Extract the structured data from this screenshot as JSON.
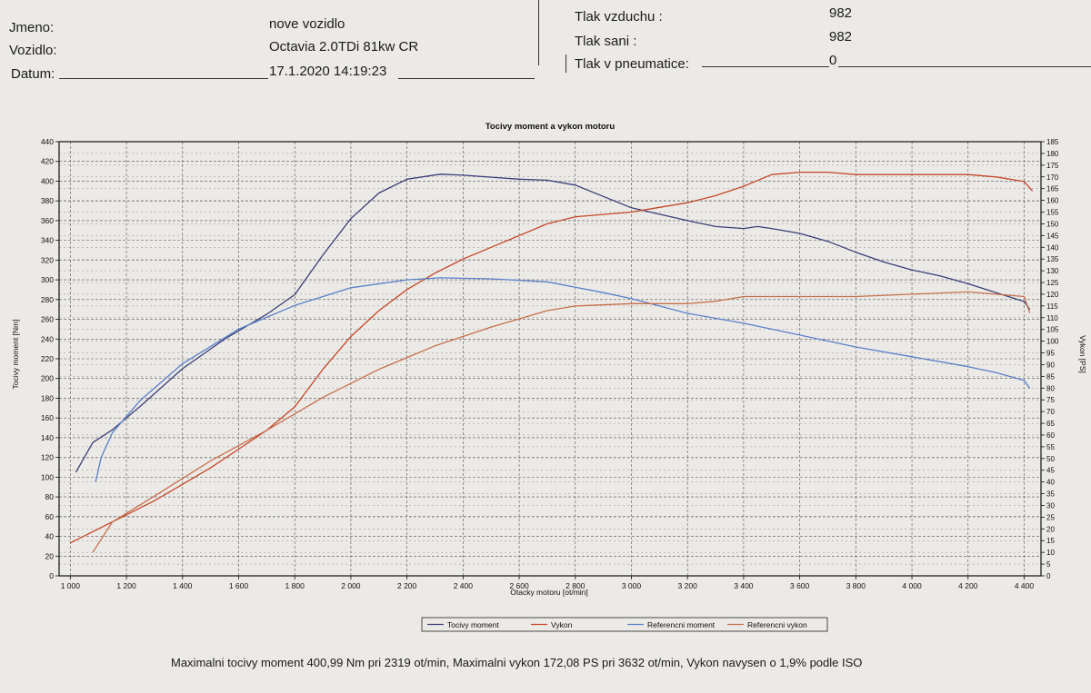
{
  "header": {
    "left": {
      "name_label": "Jmeno:",
      "name_value": "nove vozidlo",
      "vehicle_label": "Vozidlo:",
      "vehicle_value": "Octavia 2.0TDi 81kw CR",
      "date_label": "Datum:",
      "date_value": "17.1.2020 14:19:23"
    },
    "right": {
      "air_pressure_label": "Tlak vzduchu :",
      "air_pressure_value": "982",
      "intake_pressure_label": "Tlak sani :",
      "intake_pressure_value": "982",
      "tire_pressure_label": "Tlak v pneumatice:",
      "tire_pressure_value": "0"
    }
  },
  "summary": "Maximalni tocivy moment 400,99 Nm pri 2319 ot/min,  Maximalni vykon 172,08 PS pri 3632 ot/min,  Vykon navysen o 1,9% podle ISO",
  "chart_data": {
    "type": "line",
    "title": "Tocivy moment a vykon motoru",
    "xlabel": "Otacky motoru [ot/min]",
    "ylabel_left": "Tocivy moment [Nm]",
    "ylabel_right": "Vykon [PS]",
    "xlim": [
      960,
      4460
    ],
    "ylim_left": [
      0,
      440
    ],
    "ylim_right": [
      0,
      185
    ],
    "x_ticks": [
      1000,
      1200,
      1400,
      1600,
      1800,
      2000,
      2200,
      2400,
      2600,
      2800,
      3000,
      3200,
      3400,
      3600,
      3800,
      4000,
      4200,
      4400
    ],
    "x_tick_labels": [
      "1 000",
      "1 200",
      "1 400",
      "1 600",
      "1 800",
      "2 000",
      "2 200",
      "2 400",
      "2 600",
      "2 800",
      "3 000",
      "3 200",
      "3 400",
      "3 600",
      "3 800",
      "4 000",
      "4 200",
      "4 400"
    ],
    "y_left_ticks": [
      0,
      20,
      40,
      60,
      80,
      100,
      120,
      140,
      160,
      180,
      200,
      220,
      240,
      260,
      280,
      300,
      320,
      340,
      360,
      380,
      400,
      420,
      440
    ],
    "y_right_ticks": [
      0,
      5,
      10,
      15,
      20,
      25,
      30,
      35,
      40,
      45,
      50,
      55,
      60,
      65,
      70,
      75,
      80,
      85,
      90,
      95,
      100,
      105,
      110,
      115,
      120,
      125,
      130,
      135,
      140,
      145,
      150,
      155,
      160,
      165,
      170,
      175,
      180,
      185
    ],
    "legend_position": "bottom",
    "series": [
      {
        "name": "Tocivy moment",
        "axis": "left",
        "color": "#3a3f78",
        "points": [
          [
            1020,
            105
          ],
          [
            1080,
            135
          ],
          [
            1150,
            148
          ],
          [
            1250,
            172
          ],
          [
            1400,
            210
          ],
          [
            1550,
            240
          ],
          [
            1700,
            265
          ],
          [
            1800,
            285
          ],
          [
            1900,
            325
          ],
          [
            2000,
            362
          ],
          [
            2100,
            388
          ],
          [
            2200,
            402
          ],
          [
            2319,
            407
          ],
          [
            2400,
            406
          ],
          [
            2600,
            402
          ],
          [
            2700,
            401
          ],
          [
            2800,
            396
          ],
          [
            3000,
            373
          ],
          [
            3200,
            360
          ],
          [
            3300,
            354
          ],
          [
            3400,
            352
          ],
          [
            3450,
            354
          ],
          [
            3500,
            352
          ],
          [
            3600,
            347
          ],
          [
            3700,
            339
          ],
          [
            3800,
            328
          ],
          [
            3900,
            318
          ],
          [
            4000,
            310
          ],
          [
            4100,
            304
          ],
          [
            4200,
            296
          ],
          [
            4300,
            287
          ],
          [
            4400,
            278
          ],
          [
            4420,
            270
          ]
        ]
      },
      {
        "name": "Vykon",
        "axis": "right",
        "color": "#c5472a",
        "points": [
          [
            1000,
            14
          ],
          [
            1100,
            20
          ],
          [
            1200,
            26
          ],
          [
            1300,
            32
          ],
          [
            1400,
            39
          ],
          [
            1500,
            46
          ],
          [
            1600,
            54
          ],
          [
            1700,
            62
          ],
          [
            1800,
            72
          ],
          [
            1900,
            88
          ],
          [
            2000,
            102
          ],
          [
            2100,
            113
          ],
          [
            2200,
            122
          ],
          [
            2300,
            129
          ],
          [
            2400,
            135
          ],
          [
            2500,
            140
          ],
          [
            2600,
            145
          ],
          [
            2700,
            150
          ],
          [
            2800,
            153
          ],
          [
            2900,
            154
          ],
          [
            3000,
            155
          ],
          [
            3100,
            157
          ],
          [
            3200,
            159
          ],
          [
            3300,
            162
          ],
          [
            3400,
            166
          ],
          [
            3500,
            171
          ],
          [
            3600,
            172
          ],
          [
            3700,
            172
          ],
          [
            3800,
            171
          ],
          [
            3900,
            171
          ],
          [
            4000,
            171
          ],
          [
            4100,
            171
          ],
          [
            4200,
            171
          ],
          [
            4300,
            170
          ],
          [
            4400,
            168
          ],
          [
            4430,
            164
          ]
        ]
      },
      {
        "name": "Referencni moment",
        "axis": "left",
        "color": "#5b7fc9",
        "points": [
          [
            1090,
            95
          ],
          [
            1110,
            120
          ],
          [
            1150,
            145
          ],
          [
            1250,
            178
          ],
          [
            1400,
            215
          ],
          [
            1600,
            250
          ],
          [
            1800,
            274
          ],
          [
            2000,
            292
          ],
          [
            2200,
            300
          ],
          [
            2319,
            302
          ],
          [
            2500,
            301
          ],
          [
            2700,
            298
          ],
          [
            2900,
            287
          ],
          [
            3000,
            281
          ],
          [
            3200,
            266
          ],
          [
            3400,
            256
          ],
          [
            3600,
            244
          ],
          [
            3800,
            232
          ],
          [
            4000,
            222
          ],
          [
            4200,
            212
          ],
          [
            4300,
            206
          ],
          [
            4400,
            198
          ],
          [
            4420,
            190
          ]
        ]
      },
      {
        "name": "Referencni vykon",
        "axis": "right",
        "color": "#c6704f",
        "points": [
          [
            1080,
            10
          ],
          [
            1150,
            23
          ],
          [
            1300,
            34
          ],
          [
            1500,
            49
          ],
          [
            1700,
            62
          ],
          [
            1900,
            76
          ],
          [
            2100,
            88
          ],
          [
            2300,
            98
          ],
          [
            2500,
            106
          ],
          [
            2700,
            113
          ],
          [
            2800,
            115
          ],
          [
            3000,
            116
          ],
          [
            3200,
            116
          ],
          [
            3300,
            117
          ],
          [
            3400,
            119
          ],
          [
            3600,
            119
          ],
          [
            3800,
            119
          ],
          [
            4000,
            120
          ],
          [
            4200,
            121
          ],
          [
            4400,
            119
          ],
          [
            4420,
            112
          ]
        ]
      }
    ]
  }
}
